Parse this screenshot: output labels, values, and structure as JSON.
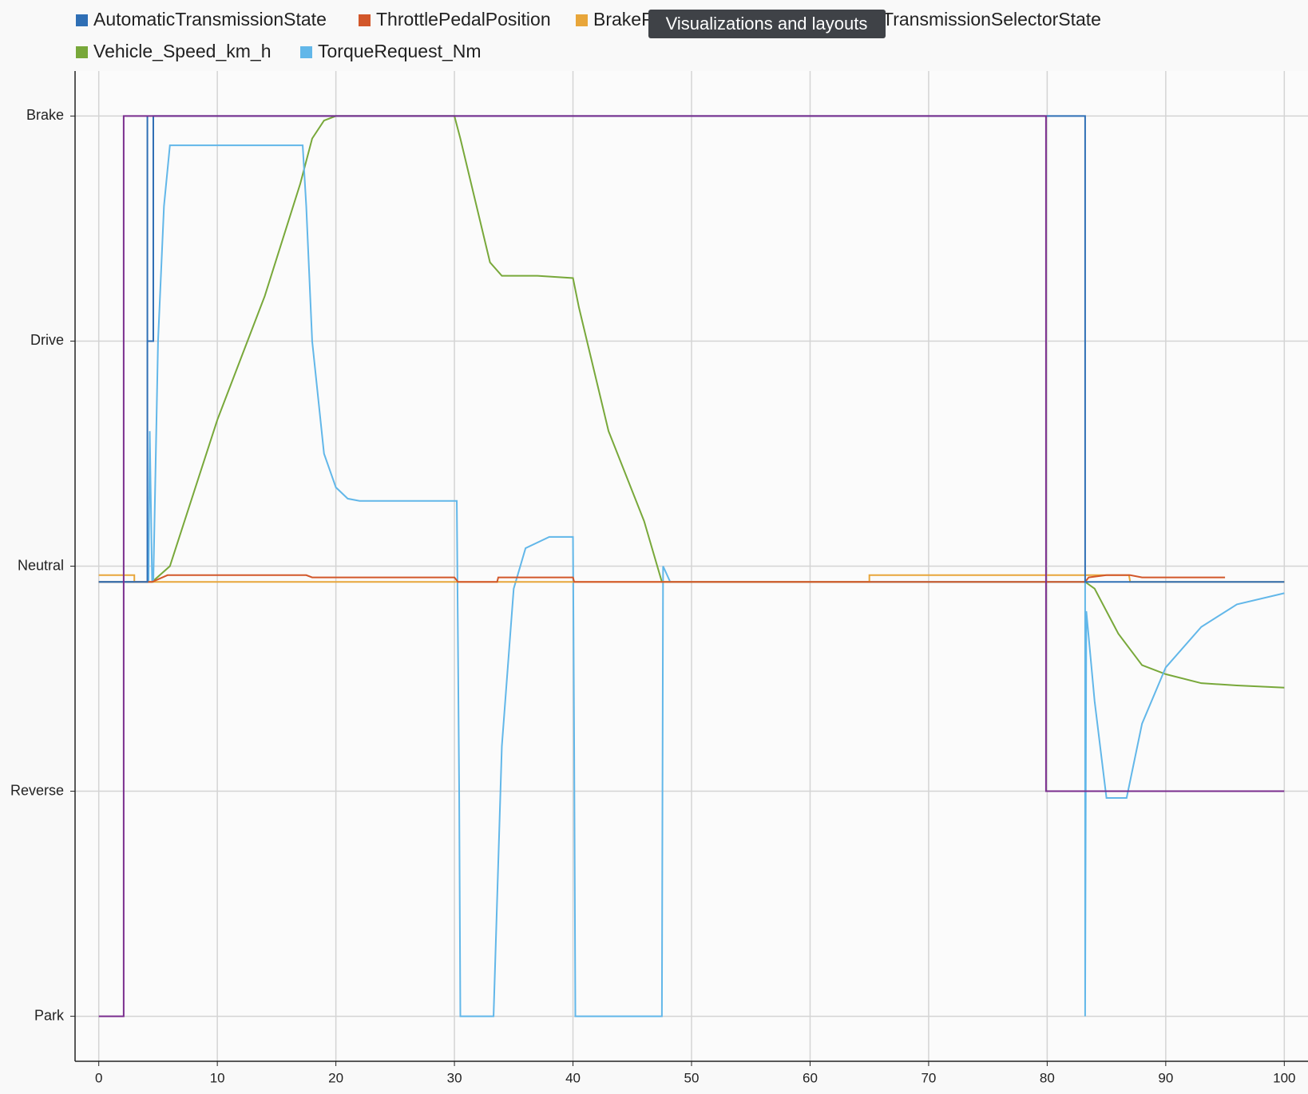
{
  "chart_data": {
    "type": "line",
    "tooltip": "Visualizations and layouts",
    "xlim": [
      -2,
      102
    ],
    "xticks": [
      0,
      10,
      20,
      30,
      40,
      50,
      60,
      70,
      80,
      90,
      100
    ],
    "ylim": [
      -0.2,
      4.2
    ],
    "yticks": [
      {
        "value": 0,
        "label": "Park"
      },
      {
        "value": 1,
        "label": "Reverse"
      },
      {
        "value": 2,
        "label": "Neutral"
      },
      {
        "value": 3,
        "label": "Drive"
      },
      {
        "value": 4,
        "label": "Brake"
      }
    ],
    "grid": true,
    "series": [
      {
        "name": "AutomaticTransmissionState",
        "color": "#2f6fb5",
        "x": [
          0,
          4.1,
          4.1,
          4.1,
          4.6,
          4.6,
          83.2,
          83.2,
          100
        ],
        "values": [
          1.93,
          1.93,
          4,
          3,
          3,
          4,
          4,
          1.93,
          1.93
        ]
      },
      {
        "name": "ThrottlePedalPosition",
        "color": "#d2572a",
        "x": [
          0,
          4.5,
          5.8,
          17.5,
          18,
          30,
          30.3,
          33.6,
          33.7,
          40,
          40.1,
          83.2,
          83.5,
          85,
          87,
          88,
          95
        ],
        "values": [
          1.93,
          1.93,
          1.96,
          1.96,
          1.95,
          1.95,
          1.93,
          1.93,
          1.95,
          1.95,
          1.93,
          1.93,
          1.95,
          1.96,
          1.96,
          1.95,
          1.95
        ]
      },
      {
        "name": "BrakeP",
        "color": "#e8a63a",
        "x": [
          0,
          3,
          3,
          65,
          65,
          83.2,
          84,
          86.9,
          87,
          100
        ],
        "values": [
          1.96,
          1.96,
          1.93,
          1.93,
          1.96,
          1.96,
          1.96,
          1.96,
          1.93,
          1.93
        ]
      },
      {
        "name": "TransmissionSelectorState",
        "color": "#7a2e8e",
        "x": [
          0,
          2.1,
          2.1,
          79.9,
          79.9,
          100
        ],
        "values": [
          0,
          0,
          4,
          4,
          1,
          1
        ]
      },
      {
        "name": "Vehicle_Speed_km_h",
        "color": "#78a83a",
        "x": [
          0,
          4.5,
          6,
          10,
          14,
          17,
          18,
          19,
          20,
          30,
          30.5,
          33,
          34,
          37,
          40,
          40.5,
          43,
          46,
          47.5,
          83.2,
          84,
          86,
          88,
          90,
          93,
          96,
          100
        ],
        "values": [
          1.93,
          1.93,
          2.0,
          2.65,
          3.2,
          3.7,
          3.9,
          3.98,
          4,
          4,
          3.9,
          3.35,
          3.29,
          3.29,
          3.28,
          3.15,
          2.6,
          2.2,
          1.93,
          1.93,
          1.9,
          1.7,
          1.56,
          1.52,
          1.48,
          1.47,
          1.46
        ]
      },
      {
        "name": "TorqueRequest_Nm",
        "color": "#62b7e9",
        "x": [
          0,
          4.2,
          4.3,
          4.5,
          4.6,
          5,
          5.5,
          6,
          17.2,
          17.5,
          18,
          19,
          20,
          21,
          22,
          30.2,
          30.4,
          30.5,
          33.3,
          34,
          35,
          36,
          38,
          40,
          40.1,
          40.2,
          47.5,
          47.6,
          48.2,
          83.2,
          83.2,
          83.3,
          84,
          85,
          86.7,
          88,
          90,
          93,
          96,
          100
        ],
        "values": [
          1.93,
          1.93,
          2.6,
          1.93,
          1.93,
          3.0,
          3.6,
          3.87,
          3.87,
          3.6,
          3.0,
          2.5,
          2.35,
          2.3,
          2.29,
          2.29,
          1.0,
          0,
          0,
          1.2,
          1.9,
          2.08,
          2.13,
          2.13,
          1.2,
          0,
          0,
          2.0,
          1.93,
          1.93,
          0,
          1.8,
          1.4,
          0.97,
          0.97,
          1.3,
          1.55,
          1.73,
          1.83,
          1.88
        ]
      }
    ]
  }
}
